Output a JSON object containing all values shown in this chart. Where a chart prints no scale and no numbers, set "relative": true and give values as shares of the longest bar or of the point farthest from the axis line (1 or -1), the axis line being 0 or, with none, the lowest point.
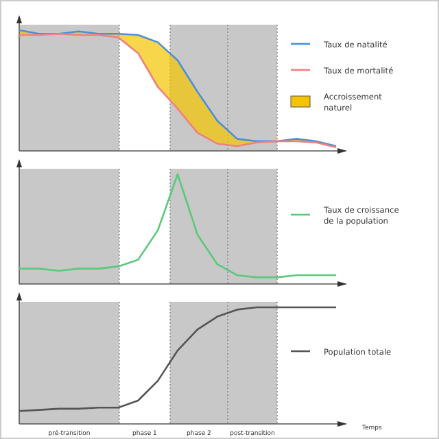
{
  "chart_data": [
    {
      "type": "line",
      "relative": true,
      "categories": [
        null,
        null,
        null,
        null,
        null,
        null,
        null,
        null,
        null,
        null,
        null,
        null,
        null,
        null,
        null,
        null,
        null
      ],
      "legend": "top right",
      "annotations": [
        "Accroissement naturel"
      ],
      "series": [
        {
          "name": "Taux de natalité",
          "color": "#4a90d9",
          "values": [
            1,
            0.97,
            0.97,
            0.99,
            0.97,
            0.97,
            0.96,
            0.9,
            0.75,
            0.49,
            0.25,
            0.1,
            0.08,
            0.08,
            0.1,
            0.08,
            0.04
          ]
        },
        {
          "name": "Taux de mortalité",
          "color": "#f08080",
          "values": [
            0.96,
            0.96,
            0.97,
            0.96,
            0.96,
            0.94,
            0.81,
            0.53,
            0.35,
            0.15,
            0.06,
            0.04,
            0.07,
            0.08,
            0.08,
            0.07,
            0.03
          ]
        }
      ]
    },
    {
      "type": "line",
      "relative": true,
      "categories": [
        null,
        null,
        null,
        null,
        null,
        null,
        null,
        null,
        null,
        null,
        null,
        null,
        null,
        null,
        null,
        null,
        null
      ],
      "legend": "right",
      "series": [
        {
          "name": "Taux de croissance de la population",
          "color": "#5cc87a",
          "values": [
            0.14,
            0.14,
            0.12,
            0.14,
            0.14,
            0.16,
            0.22,
            0.49,
            1,
            0.45,
            0.18,
            0.08,
            0.06,
            0.06,
            0.08,
            0.08,
            0.08
          ]
        }
      ]
    },
    {
      "type": "line",
      "relative": true,
      "categories": [
        null,
        null,
        null,
        null,
        null,
        null,
        null,
        null,
        null,
        null,
        null,
        null,
        null,
        null,
        null,
        null,
        null
      ],
      "legend": "right",
      "xlabel": "Temps",
      "annotations": [
        "pré-transition",
        "phase 1",
        "phase 2",
        "post-transition"
      ],
      "series": [
        {
          "name": "Population totale",
          "color": "#555555",
          "values": [
            0.11,
            0.12,
            0.13,
            0.13,
            0.14,
            0.14,
            0.2,
            0.37,
            0.63,
            0.81,
            0.92,
            0.98,
            1,
            1,
            1,
            1,
            1
          ]
        }
      ]
    }
  ]
}
